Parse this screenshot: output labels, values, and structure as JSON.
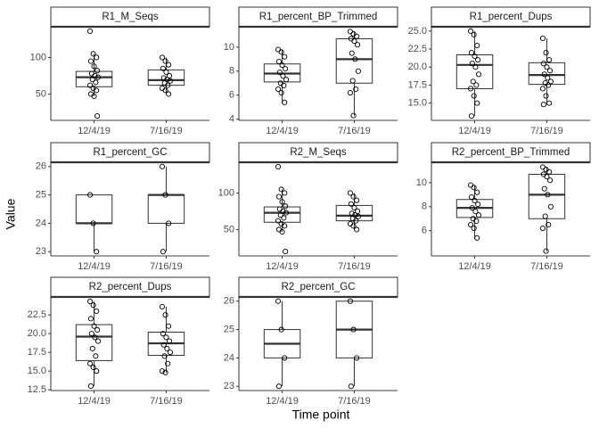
{
  "xlabel": "Time point",
  "ylabel": "Value",
  "chart_data": [
    {
      "type": "box",
      "title": "R1_M_Seqs",
      "categories": [
        "12/4/19",
        "7/16/19"
      ],
      "ylim": [
        14,
        142
      ],
      "yticks": [
        50,
        100
      ],
      "boxes": [
        {
          "min": 47,
          "q1": 60,
          "median": 73,
          "q3": 81,
          "max": 105,
          "points": [
            136,
            105,
            100,
            95,
            88,
            82,
            78,
            75,
            73,
            70,
            66,
            62,
            58,
            55,
            50,
            47,
            20
          ]
        },
        {
          "min": 50,
          "q1": 62,
          "median": 69,
          "q3": 83,
          "max": 100,
          "points": [
            100,
            95,
            90,
            85,
            80,
            75,
            72,
            70,
            68,
            65,
            62,
            58,
            55,
            50
          ]
        }
      ]
    },
    {
      "type": "box",
      "title": "R1_percent_BP_Trimmed",
      "categories": [
        "12/4/19",
        "7/16/19"
      ],
      "ylim": [
        3.9,
        11.7
      ],
      "yticks": [
        4,
        6,
        8,
        10
      ],
      "boxes": [
        {
          "min": 5.3,
          "q1": 7.1,
          "median": 7.8,
          "q3": 8.6,
          "max": 9.8,
          "points": [
            9.8,
            9.6,
            9.2,
            8.8,
            8.5,
            8.2,
            7.9,
            7.6,
            7.3,
            7.0,
            6.8,
            6.5,
            6.2,
            5.4
          ]
        },
        {
          "min": 4.3,
          "q1": 7.0,
          "median": 9.0,
          "q3": 10.7,
          "max": 11.3,
          "points": [
            11.3,
            11.1,
            10.9,
            10.7,
            10.5,
            10.2,
            9.5,
            9.0,
            8.0,
            7.2,
            6.5,
            6.2,
            4.3
          ]
        }
      ]
    },
    {
      "type": "box",
      "title": "R1_percent_Dups",
      "categories": [
        "12/4/19",
        "7/16/19"
      ],
      "ylim": [
        12.6,
        25.6
      ],
      "yticks": [
        {
          "value": 15,
          "label": "15.0"
        },
        17.5,
        {
          "value": 20,
          "label": "20.0"
        },
        22.5,
        {
          "value": 25,
          "label": "25.0"
        }
      ],
      "boxes": [
        {
          "min": 13.2,
          "q1": 17,
          "median": 20.3,
          "q3": 21.7,
          "max": 25,
          "points": [
            25,
            24.5,
            23,
            22,
            21.5,
            21,
            20.5,
            20,
            19,
            18,
            17.5,
            17,
            16,
            15,
            13.2
          ]
        },
        {
          "min": 14.8,
          "q1": 17.6,
          "median": 18.9,
          "q3": 20.6,
          "max": 24,
          "points": [
            24,
            22,
            21,
            20.5,
            20,
            19.5,
            19,
            18.5,
            18,
            17.8,
            17.5,
            17,
            16,
            15,
            14.8
          ]
        }
      ]
    },
    {
      "type": "box",
      "title": "R1_percent_GC",
      "categories": [
        "12/4/19",
        "7/16/19"
      ],
      "ylim": [
        22.85,
        26.15
      ],
      "yticks": [
        23,
        24,
        25,
        26
      ],
      "boxes": [
        {
          "min": 23,
          "q1": 24,
          "median": 24,
          "q3": 25,
          "max": 25,
          "points": [
            25,
            24,
            23
          ]
        },
        {
          "min": 23,
          "q1": 24,
          "median": 25,
          "q3": 25,
          "max": 26,
          "points": [
            26,
            25,
            24,
            23
          ]
        }
      ]
    },
    {
      "type": "box",
      "title": "R2_M_Seqs",
      "categories": [
        "12/4/19",
        "7/16/19"
      ],
      "ylim": [
        14,
        142
      ],
      "yticks": [
        50,
        100
      ],
      "boxes": [
        {
          "min": 47,
          "q1": 60,
          "median": 73,
          "q3": 81,
          "max": 105,
          "points": [
            136,
            105,
            100,
            95,
            88,
            82,
            78,
            75,
            73,
            70,
            66,
            62,
            58,
            55,
            50,
            47,
            20
          ]
        },
        {
          "min": 50,
          "q1": 62,
          "median": 69,
          "q3": 83,
          "max": 100,
          "points": [
            100,
            95,
            90,
            85,
            80,
            75,
            72,
            70,
            68,
            65,
            62,
            58,
            55,
            50
          ]
        }
      ]
    },
    {
      "type": "box",
      "title": "R2_percent_BP_Trimmed",
      "categories": [
        "12/4/19",
        "7/16/19"
      ],
      "ylim": [
        3.9,
        11.7
      ],
      "yticks": [
        6,
        8,
        10
      ],
      "boxes": [
        {
          "min": 5.3,
          "q1": 7.1,
          "median": 7.9,
          "q3": 8.6,
          "max": 9.8,
          "points": [
            9.8,
            9.6,
            9.2,
            8.8,
            8.5,
            8.2,
            7.9,
            7.6,
            7.3,
            7.0,
            6.8,
            6.5,
            6.2,
            5.4
          ]
        },
        {
          "min": 4.3,
          "q1": 7.0,
          "median": 9.0,
          "q3": 10.7,
          "max": 11.3,
          "points": [
            11.3,
            11.1,
            10.9,
            10.7,
            10.5,
            10.2,
            9.5,
            9.0,
            8.0,
            7.2,
            6.5,
            6.2,
            4.3
          ]
        }
      ]
    },
    {
      "type": "box",
      "title": "R2_percent_Dups",
      "categories": [
        "12/4/19",
        "7/16/19"
      ],
      "ylim": [
        12.4,
        24.9
      ],
      "yticks": [
        12.5,
        {
          "value": 15,
          "label": "15.0"
        },
        17.5,
        {
          "value": 20,
          "label": "20.0"
        },
        22.5
      ],
      "boxes": [
        {
          "min": 13,
          "q1": 16.4,
          "median": 19.6,
          "q3": 21.2,
          "max": 24.3,
          "points": [
            24.3,
            23.8,
            23,
            22,
            21,
            20.5,
            20,
            19.5,
            19,
            18,
            17,
            16,
            15.5,
            15,
            13
          ]
        },
        {
          "min": 14.8,
          "q1": 17.1,
          "median": 18.7,
          "q3": 20.2,
          "max": 23.6,
          "points": [
            23.6,
            22.5,
            21,
            20,
            19.5,
            19,
            18.5,
            18,
            17.5,
            17,
            16,
            15,
            14.8
          ]
        }
      ]
    },
    {
      "type": "box",
      "title": "R2_percent_GC",
      "categories": [
        "12/4/19",
        "7/16/19"
      ],
      "ylim": [
        22.85,
        26.15
      ],
      "yticks": [
        23,
        24,
        25,
        26
      ],
      "boxes": [
        {
          "min": 23,
          "q1": 24,
          "median": 24.5,
          "q3": 25,
          "max": 26,
          "points": [
            26,
            25,
            24,
            23
          ]
        },
        {
          "min": 23,
          "q1": 24,
          "median": 25,
          "q3": 26,
          "max": 26,
          "points": [
            26,
            25,
            24,
            23
          ]
        }
      ]
    }
  ]
}
